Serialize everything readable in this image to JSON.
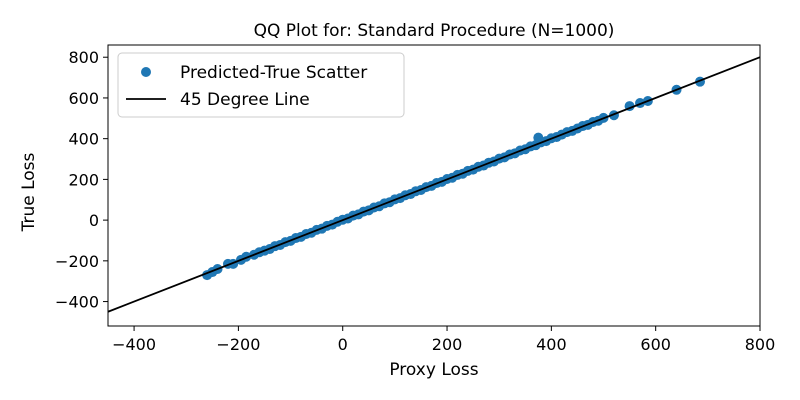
{
  "chart_data": {
    "type": "scatter",
    "title": "QQ Plot for: Standard Procedure (N=1000)",
    "xlabel": "Proxy Loss",
    "ylabel": "True Loss",
    "xlim": [
      -450,
      800
    ],
    "ylim": [
      -520,
      860
    ],
    "xticks": [
      -400,
      -200,
      0,
      200,
      400,
      600,
      800
    ],
    "yticks": [
      -400,
      -200,
      0,
      200,
      400,
      600,
      800
    ],
    "grid": false,
    "legend_position": "top-left",
    "series": [
      {
        "name": "Predicted-True Scatter",
        "kind": "scatter",
        "color": "#1f77b4",
        "points": [
          [
            -260,
            -270
          ],
          [
            -250,
            -255
          ],
          [
            -240,
            -240
          ],
          [
            -220,
            -215
          ],
          [
            -210,
            -215
          ],
          [
            -195,
            -195
          ],
          [
            -185,
            -180
          ],
          [
            -170,
            -170
          ],
          [
            -160,
            -158
          ],
          [
            -150,
            -150
          ],
          [
            -140,
            -142
          ],
          [
            -130,
            -128
          ],
          [
            -120,
            -122
          ],
          [
            -110,
            -108
          ],
          [
            -100,
            -102
          ],
          [
            -90,
            -88
          ],
          [
            -80,
            -82
          ],
          [
            -70,
            -68
          ],
          [
            -60,
            -62
          ],
          [
            -50,
            -48
          ],
          [
            -40,
            -42
          ],
          [
            -30,
            -28
          ],
          [
            -20,
            -22
          ],
          [
            -10,
            -8
          ],
          [
            0,
            2
          ],
          [
            10,
            8
          ],
          [
            20,
            22
          ],
          [
            30,
            28
          ],
          [
            40,
            42
          ],
          [
            50,
            48
          ],
          [
            60,
            62
          ],
          [
            70,
            68
          ],
          [
            80,
            82
          ],
          [
            90,
            88
          ],
          [
            100,
            102
          ],
          [
            110,
            108
          ],
          [
            120,
            122
          ],
          [
            130,
            128
          ],
          [
            140,
            142
          ],
          [
            150,
            148
          ],
          [
            160,
            162
          ],
          [
            170,
            168
          ],
          [
            180,
            182
          ],
          [
            190,
            188
          ],
          [
            200,
            202
          ],
          [
            210,
            208
          ],
          [
            220,
            222
          ],
          [
            230,
            228
          ],
          [
            240,
            242
          ],
          [
            250,
            248
          ],
          [
            260,
            262
          ],
          [
            270,
            268
          ],
          [
            280,
            282
          ],
          [
            290,
            288
          ],
          [
            300,
            302
          ],
          [
            310,
            308
          ],
          [
            320,
            322
          ],
          [
            330,
            328
          ],
          [
            340,
            342
          ],
          [
            350,
            348
          ],
          [
            360,
            362
          ],
          [
            370,
            368
          ],
          [
            375,
            405
          ],
          [
            380,
            382
          ],
          [
            390,
            388
          ],
          [
            400,
            402
          ],
          [
            410,
            408
          ],
          [
            420,
            420
          ],
          [
            430,
            432
          ],
          [
            440,
            438
          ],
          [
            450,
            450
          ],
          [
            460,
            462
          ],
          [
            470,
            468
          ],
          [
            480,
            482
          ],
          [
            490,
            488
          ],
          [
            500,
            502
          ],
          [
            520,
            515
          ],
          [
            550,
            560
          ],
          [
            570,
            575
          ],
          [
            585,
            585
          ],
          [
            640,
            640
          ],
          [
            685,
            680
          ]
        ]
      },
      {
        "name": "45 Degree Line",
        "kind": "line",
        "color": "#000000",
        "x": [
          -450,
          800
        ],
        "y": [
          -450,
          800
        ]
      }
    ]
  }
}
